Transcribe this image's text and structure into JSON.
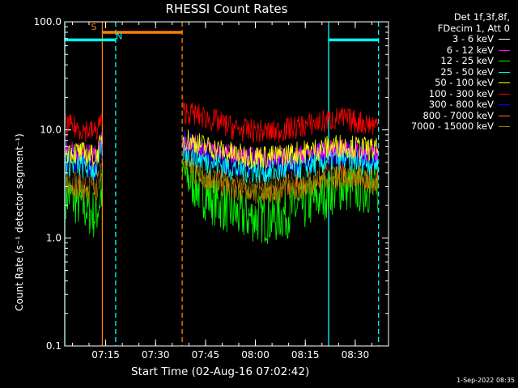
{
  "chart_data": {
    "type": "line",
    "title": "RHESSI Count Rates",
    "xlabel": "Start Time (02-Aug-16 07:02:42)",
    "ylabel": "Count Rate (s⁻¹ detector segment⁻¹)",
    "yscale": "log",
    "ylim": [
      0.1,
      100.0
    ],
    "xlim": [
      "07:02:42",
      "08:40:00"
    ],
    "x_ticks": [
      "07:15",
      "07:30",
      "07:45",
      "08:00",
      "08:15",
      "08:30"
    ],
    "y_ticks": [
      "0.1",
      "1.0",
      "10.0",
      "100.0"
    ],
    "legend_header": [
      "Det 1f,3f,8f,",
      "FDecim 1, Att 0"
    ],
    "series": [
      {
        "name": "3 - 6 keV",
        "color": "#000000",
        "x": [
          "07:03",
          "07:08",
          "07:12",
          "07:14",
          "07:38",
          "07:45",
          "07:55",
          "08:05",
          "08:15",
          "08:25",
          "08:37"
        ],
        "values": [
          4.0,
          3.6,
          3.3,
          6.0,
          7.0,
          5.0,
          3.8,
          3.6,
          4.3,
          5.2,
          4.5
        ]
      },
      {
        "name": "6 - 12 keV",
        "color": "#ff00ff",
        "x": [
          "07:03",
          "07:08",
          "07:12",
          "07:14",
          "07:38",
          "07:45",
          "07:55",
          "08:05",
          "08:15",
          "08:25",
          "08:37"
        ],
        "values": [
          6.8,
          6.2,
          5.9,
          8.5,
          8.0,
          6.8,
          5.8,
          5.5,
          6.0,
          6.8,
          6.0
        ]
      },
      {
        "name": "12 - 25 keV",
        "color": "#00ff00",
        "x": [
          "07:03",
          "07:08",
          "07:12",
          "07:14",
          "07:38",
          "07:45",
          "07:55",
          "08:05",
          "08:15",
          "08:25",
          "08:37"
        ],
        "values": [
          2.6,
          2.0,
          1.6,
          2.8,
          4.0,
          2.5,
          1.6,
          1.5,
          2.0,
          3.0,
          2.8
        ]
      },
      {
        "name": "25 - 50 keV",
        "color": "#00ffff",
        "x": [
          "07:03",
          "07:08",
          "07:12",
          "07:14",
          "07:38",
          "07:45",
          "07:55",
          "08:05",
          "08:15",
          "08:25",
          "08:37"
        ],
        "values": [
          5.0,
          4.6,
          4.3,
          7.0,
          6.5,
          5.2,
          4.3,
          4.1,
          4.6,
          5.5,
          4.9
        ]
      },
      {
        "name": "50 - 100 keV",
        "color": "#ffff00",
        "x": [
          "07:03",
          "07:08",
          "07:12",
          "07:14",
          "07:38",
          "07:45",
          "07:55",
          "08:05",
          "08:15",
          "08:25",
          "08:37"
        ],
        "values": [
          6.5,
          6.0,
          5.6,
          8.0,
          8.5,
          7.0,
          5.8,
          5.6,
          6.3,
          7.2,
          6.5
        ]
      },
      {
        "name": "100 - 300 keV",
        "color": "#ff0000",
        "x": [
          "07:03",
          "07:08",
          "07:12",
          "07:14",
          "07:38",
          "07:45",
          "07:55",
          "08:05",
          "08:15",
          "08:25",
          "08:37"
        ],
        "values": [
          11.0,
          10.2,
          9.5,
          13.0,
          15.0,
          13.0,
          10.0,
          9.5,
          11.0,
          12.8,
          11.0
        ]
      },
      {
        "name": "300 - 800 keV",
        "color": "#0000ff",
        "x": [
          "07:03",
          "07:08",
          "07:12",
          "07:14",
          "07:38",
          "07:45",
          "07:55",
          "08:05",
          "08:15",
          "08:25",
          "08:37"
        ],
        "values": [
          5.5,
          5.0,
          4.6,
          7.5,
          7.5,
          6.0,
          5.0,
          4.8,
          5.4,
          6.2,
          5.6
        ]
      },
      {
        "name": "800 - 7000 keV",
        "color": "#ff8000",
        "x": [
          "07:03",
          "07:08",
          "07:12",
          "07:14",
          "07:38",
          "07:45",
          "07:55",
          "08:05",
          "08:15",
          "08:25",
          "08:37"
        ],
        "values": [
          3.5,
          3.1,
          2.8,
          5.0,
          5.5,
          3.8,
          3.0,
          2.9,
          3.3,
          4.0,
          3.6
        ]
      },
      {
        "name": "7000 - 15000 keV",
        "color": "#808000",
        "x": [
          "07:03",
          "07:08",
          "07:12",
          "07:14",
          "07:38",
          "07:45",
          "07:55",
          "08:05",
          "08:15",
          "08:25",
          "08:37"
        ],
        "values": [
          3.2,
          2.9,
          2.7,
          4.5,
          5.0,
          3.5,
          2.8,
          2.7,
          3.0,
          3.6,
          3.3
        ]
      }
    ],
    "annotations": [
      {
        "label": "S",
        "color": "#ff8000",
        "x_start": "07:14",
        "x_end": "07:38",
        "y": 80
      },
      {
        "label": "N",
        "color": "#00ffff",
        "x_start": "07:02:42",
        "x_end": "07:18",
        "y": 68
      }
    ],
    "cyan_segment_right": {
      "color": "#00ffff",
      "x_start": "08:22",
      "x_end": "08:37",
      "y": 68
    },
    "vertical_lines": [
      {
        "x": "07:02:42",
        "color": "#00ffff",
        "style": "solid"
      },
      {
        "x": "07:14",
        "color": "#ff8000",
        "style": "solid"
      },
      {
        "x": "07:18",
        "color": "#00ffff",
        "style": "dashed"
      },
      {
        "x": "07:38",
        "color": "#ff8000",
        "style": "dashed"
      },
      {
        "x": "08:22",
        "color": "#00ffff",
        "style": "solid"
      },
      {
        "x": "08:37",
        "color": "#00ffff",
        "style": "dashed"
      }
    ],
    "gaps": [
      {
        "from": "07:14",
        "to": "07:38"
      }
    ]
  },
  "footer_stamp": "1-Sep-2022 08:35"
}
